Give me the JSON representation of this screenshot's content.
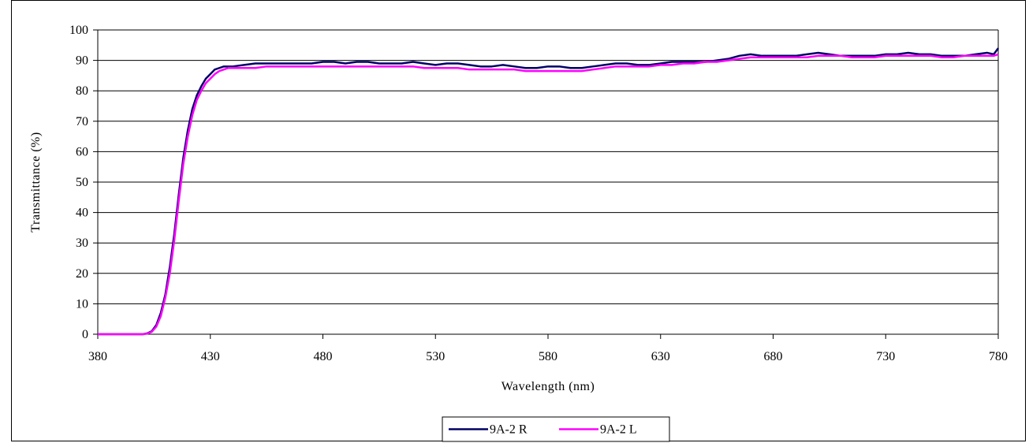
{
  "chart_data": {
    "type": "line",
    "title": "",
    "xlabel": "Wavelength (nm)",
    "ylabel": "Transmittance (%)",
    "xlim": [
      380,
      780
    ],
    "ylim": [
      0,
      100
    ],
    "xticks": [
      "380",
      "430",
      "480",
      "530",
      "580",
      "630",
      "680",
      "730",
      "780"
    ],
    "yticks": [
      "0",
      "10",
      "20",
      "30",
      "40",
      "50",
      "60",
      "70",
      "80",
      "90",
      "100"
    ],
    "grid": "horizontal",
    "legend_position": "bottom",
    "series": [
      {
        "name": "9A-2 R",
        "color": "#000066",
        "x": [
          380,
          400,
          402,
          404,
          406,
          408,
          410,
          412,
          414,
          416,
          418,
          420,
          422,
          424,
          426,
          428,
          430,
          432,
          434,
          436,
          438,
          440,
          445,
          450,
          455,
          460,
          465,
          470,
          475,
          480,
          485,
          490,
          495,
          500,
          505,
          510,
          515,
          520,
          525,
          530,
          535,
          540,
          545,
          550,
          555,
          560,
          565,
          570,
          575,
          580,
          585,
          590,
          595,
          600,
          605,
          610,
          615,
          620,
          625,
          630,
          635,
          640,
          645,
          650,
          655,
          660,
          665,
          670,
          675,
          680,
          685,
          690,
          695,
          700,
          705,
          710,
          715,
          720,
          725,
          730,
          735,
          740,
          745,
          750,
          755,
          760,
          765,
          770,
          775,
          778,
          780
        ],
        "y": [
          0,
          0,
          0.3,
          1,
          3,
          7,
          13,
          22,
          33,
          46,
          58,
          67,
          74,
          78.5,
          81.5,
          84,
          85.5,
          87,
          87.5,
          88,
          88,
          88,
          88.5,
          89,
          89,
          89,
          89,
          89,
          89,
          89.5,
          89.5,
          89,
          89.5,
          89.5,
          89,
          89,
          89,
          89.5,
          89,
          88.5,
          89,
          89,
          88.5,
          88,
          88,
          88.5,
          88,
          87.5,
          87.5,
          88,
          88,
          87.5,
          87.5,
          88,
          88.5,
          89,
          89,
          88.5,
          88.5,
          89,
          89.5,
          89.5,
          89.5,
          89.5,
          90,
          90.5,
          91.5,
          92,
          91.5,
          91.5,
          91.5,
          91.5,
          92,
          92.5,
          92,
          91.5,
          91.5,
          91.5,
          91.5,
          92,
          92,
          92.5,
          92,
          92,
          91.5,
          91.5,
          91.5,
          92,
          92.5,
          92,
          94
        ]
      },
      {
        "name": "9A-2 L",
        "color": "#ff00ff",
        "x": [
          380,
          400,
          402,
          404,
          406,
          408,
          410,
          412,
          414,
          416,
          418,
          420,
          422,
          424,
          426,
          428,
          430,
          432,
          434,
          436,
          438,
          440,
          445,
          450,
          455,
          460,
          465,
          470,
          475,
          480,
          485,
          490,
          495,
          500,
          505,
          510,
          515,
          520,
          525,
          530,
          535,
          540,
          545,
          550,
          555,
          560,
          565,
          570,
          575,
          580,
          585,
          590,
          595,
          600,
          605,
          610,
          615,
          620,
          625,
          630,
          635,
          640,
          645,
          650,
          655,
          660,
          665,
          670,
          675,
          680,
          685,
          690,
          695,
          700,
          705,
          710,
          715,
          720,
          725,
          730,
          735,
          740,
          745,
          750,
          755,
          760,
          765,
          770,
          775,
          778,
          780
        ],
        "y": [
          0,
          0,
          0.2,
          0.8,
          2.5,
          6,
          12,
          20,
          31,
          44,
          56,
          65,
          72,
          77,
          80,
          82.5,
          84,
          85.5,
          86.5,
          87,
          87.5,
          87.5,
          87.5,
          87.5,
          88,
          88,
          88,
          88,
          88,
          88,
          88,
          88,
          88,
          88,
          88,
          88,
          88,
          88,
          87.5,
          87.5,
          87.5,
          87.5,
          87,
          87,
          87,
          87,
          87,
          86.5,
          86.5,
          86.5,
          86.5,
          86.5,
          86.5,
          87,
          87.5,
          88,
          88,
          88,
          88,
          88.5,
          88.5,
          89,
          89,
          89.5,
          89.5,
          90,
          90.5,
          91,
          91,
          91,
          91,
          91,
          91,
          91.5,
          91.5,
          91.5,
          91,
          91,
          91,
          91.5,
          91.5,
          91.5,
          91.5,
          91.5,
          91,
          91,
          91.5,
          91.5,
          91.5,
          91.5,
          92
        ]
      }
    ]
  }
}
